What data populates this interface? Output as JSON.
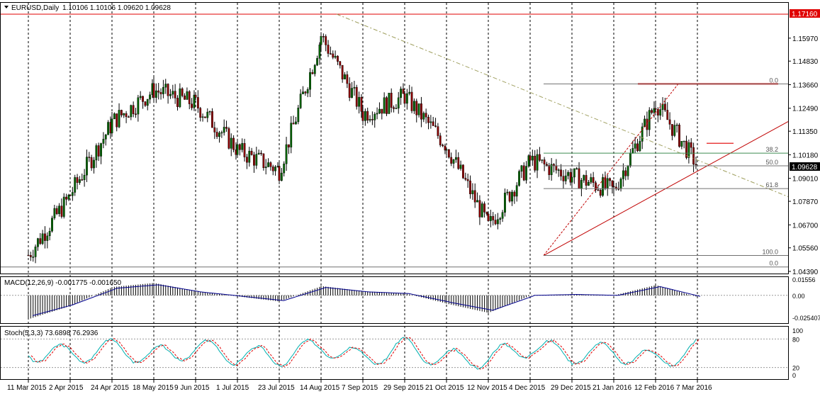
{
  "symbol_header": {
    "symbol": "EURUSD,Daily",
    "ohlc": "1.10106 1.10106 1.09620 1.09628"
  },
  "price_scale": {
    "ticks": [
      "1.15970",
      "1.14830",
      "1.13660",
      "1.12490",
      "1.11350",
      "1.10180",
      "1.09010",
      "1.07870",
      "1.06700",
      "1.05560",
      "1.04390"
    ],
    "highlight_high": "1.17160",
    "current_price": "1.09628"
  },
  "date_axis": [
    "11 Mar 2015",
    "2 Apr 2015",
    "24 Apr 2015",
    "18 May 2015",
    "9 Jun 2015",
    "1 Jul 2015",
    "23 Jul 2015",
    "14 Aug 2015",
    "7 Sep 2015",
    "29 Sep 2015",
    "21 Oct 2015",
    "12 Nov 2015",
    "4 Dec 2015",
    "29 Dec 2015",
    "21 Jan 2016",
    "12 Feb 2016",
    "7 Mar 2016"
  ],
  "fibonacci": {
    "levels": [
      {
        "label": "0.0",
        "price": 1.137
      },
      {
        "label": "38.2",
        "price": 1.1026
      },
      {
        "label": "50.0",
        "price": 1.0963
      },
      {
        "label": "61.8",
        "price": 1.085
      },
      {
        "label": "100.0",
        "price": 1.0518
      },
      {
        "label": "0.0",
        "price": 1.0461
      }
    ]
  },
  "macd_panel": {
    "label": "MACD(12,26,9) -0.001775 -0.001650",
    "ticks": [
      "0.01556",
      "0.00",
      "-0.025407"
    ]
  },
  "stoch_panel": {
    "label": "Stoch(5,3,3) 73.6898 76.2936",
    "ticks": [
      "100",
      "80",
      "20",
      "0"
    ]
  },
  "colors": {
    "bull_candle": "#006400",
    "bear_candle": "#8B0000",
    "resistance_line": "#e00000",
    "trend_line": "#c00000",
    "macd_signal": "#00008b",
    "stoch_main": "#00b0b0",
    "stoch_signal": "#e00000",
    "price_label_bg": "#e00000"
  },
  "chart_data": [
    {
      "type": "line",
      "title": "EURUSD,Daily",
      "x": [
        "11 Mar 2015",
        "2 Apr 2015",
        "24 Apr 2015",
        "18 May 2015",
        "9 Jun 2015",
        "1 Jul 2015",
        "23 Jul 2015",
        "14 Aug 2015",
        "7 Sep 2015",
        "29 Sep 2015",
        "21 Oct 2015",
        "12 Nov 2015",
        "4 Dec 2015",
        "29 Dec 2015",
        "21 Jan 2016",
        "12 Feb 2016",
        "7 Mar 2016"
      ],
      "series": [
        {
          "values": [
            1.052,
            1.082,
            1.118,
            1.134,
            1.127,
            1.104,
            1.094,
            1.161,
            1.122,
            1.131,
            1.106,
            1.066,
            1.099,
            1.091,
            1.084,
            1.128,
            1.096
          ]
        }
      ],
      "ylim": [
        1.0439,
        1.1716
      ],
      "grid": true
    },
    {
      "type": "bar",
      "title": "MACD(12,26,9) -0.001775 -0.001650",
      "x": [
        "11 Mar 2015",
        "2 Apr 2015",
        "24 Apr 2015",
        "18 May 2015",
        "9 Jun 2015",
        "1 Jul 2015",
        "23 Jul 2015",
        "14 Aug 2015",
        "7 Sep 2015",
        "29 Sep 2015",
        "21 Oct 2015",
        "12 Nov 2015",
        "4 Dec 2015",
        "29 Dec 2015",
        "21 Jan 2016",
        "12 Feb 2016",
        "7 Mar 2016"
      ],
      "series": [
        {
          "values": [
            -0.023,
            -0.01,
            0.008,
            0.012,
            0.004,
            -0.001,
            -0.006,
            0.009,
            0.004,
            0.002,
            -0.008,
            -0.017,
            0.0,
            0.001,
            0.0,
            0.01,
            -0.0018
          ]
        }
      ],
      "ylim": [
        -0.025407,
        0.01556
      ]
    },
    {
      "type": "line",
      "title": "Stoch(5,3,3) 73.6898 76.2936",
      "x": [
        "11 Mar 2015",
        "2 Apr 2015",
        "24 Apr 2015",
        "18 May 2015",
        "9 Jun 2015",
        "1 Jul 2015",
        "23 Jul 2015",
        "14 Aug 2015",
        "7 Sep 2015",
        "29 Sep 2015",
        "21 Oct 2015",
        "12 Nov 2015",
        "4 Dec 2015",
        "29 Dec 2015",
        "21 Jan 2016",
        "12 Feb 2016",
        "7 Mar 2016"
      ],
      "series": [
        {
          "values": [
            60,
            40,
            80,
            30,
            75,
            40,
            30,
            85,
            20,
            85,
            15,
            25,
            85,
            40,
            60,
            10,
            74
          ]
        }
      ],
      "ylim": [
        0,
        100
      ]
    }
  ]
}
